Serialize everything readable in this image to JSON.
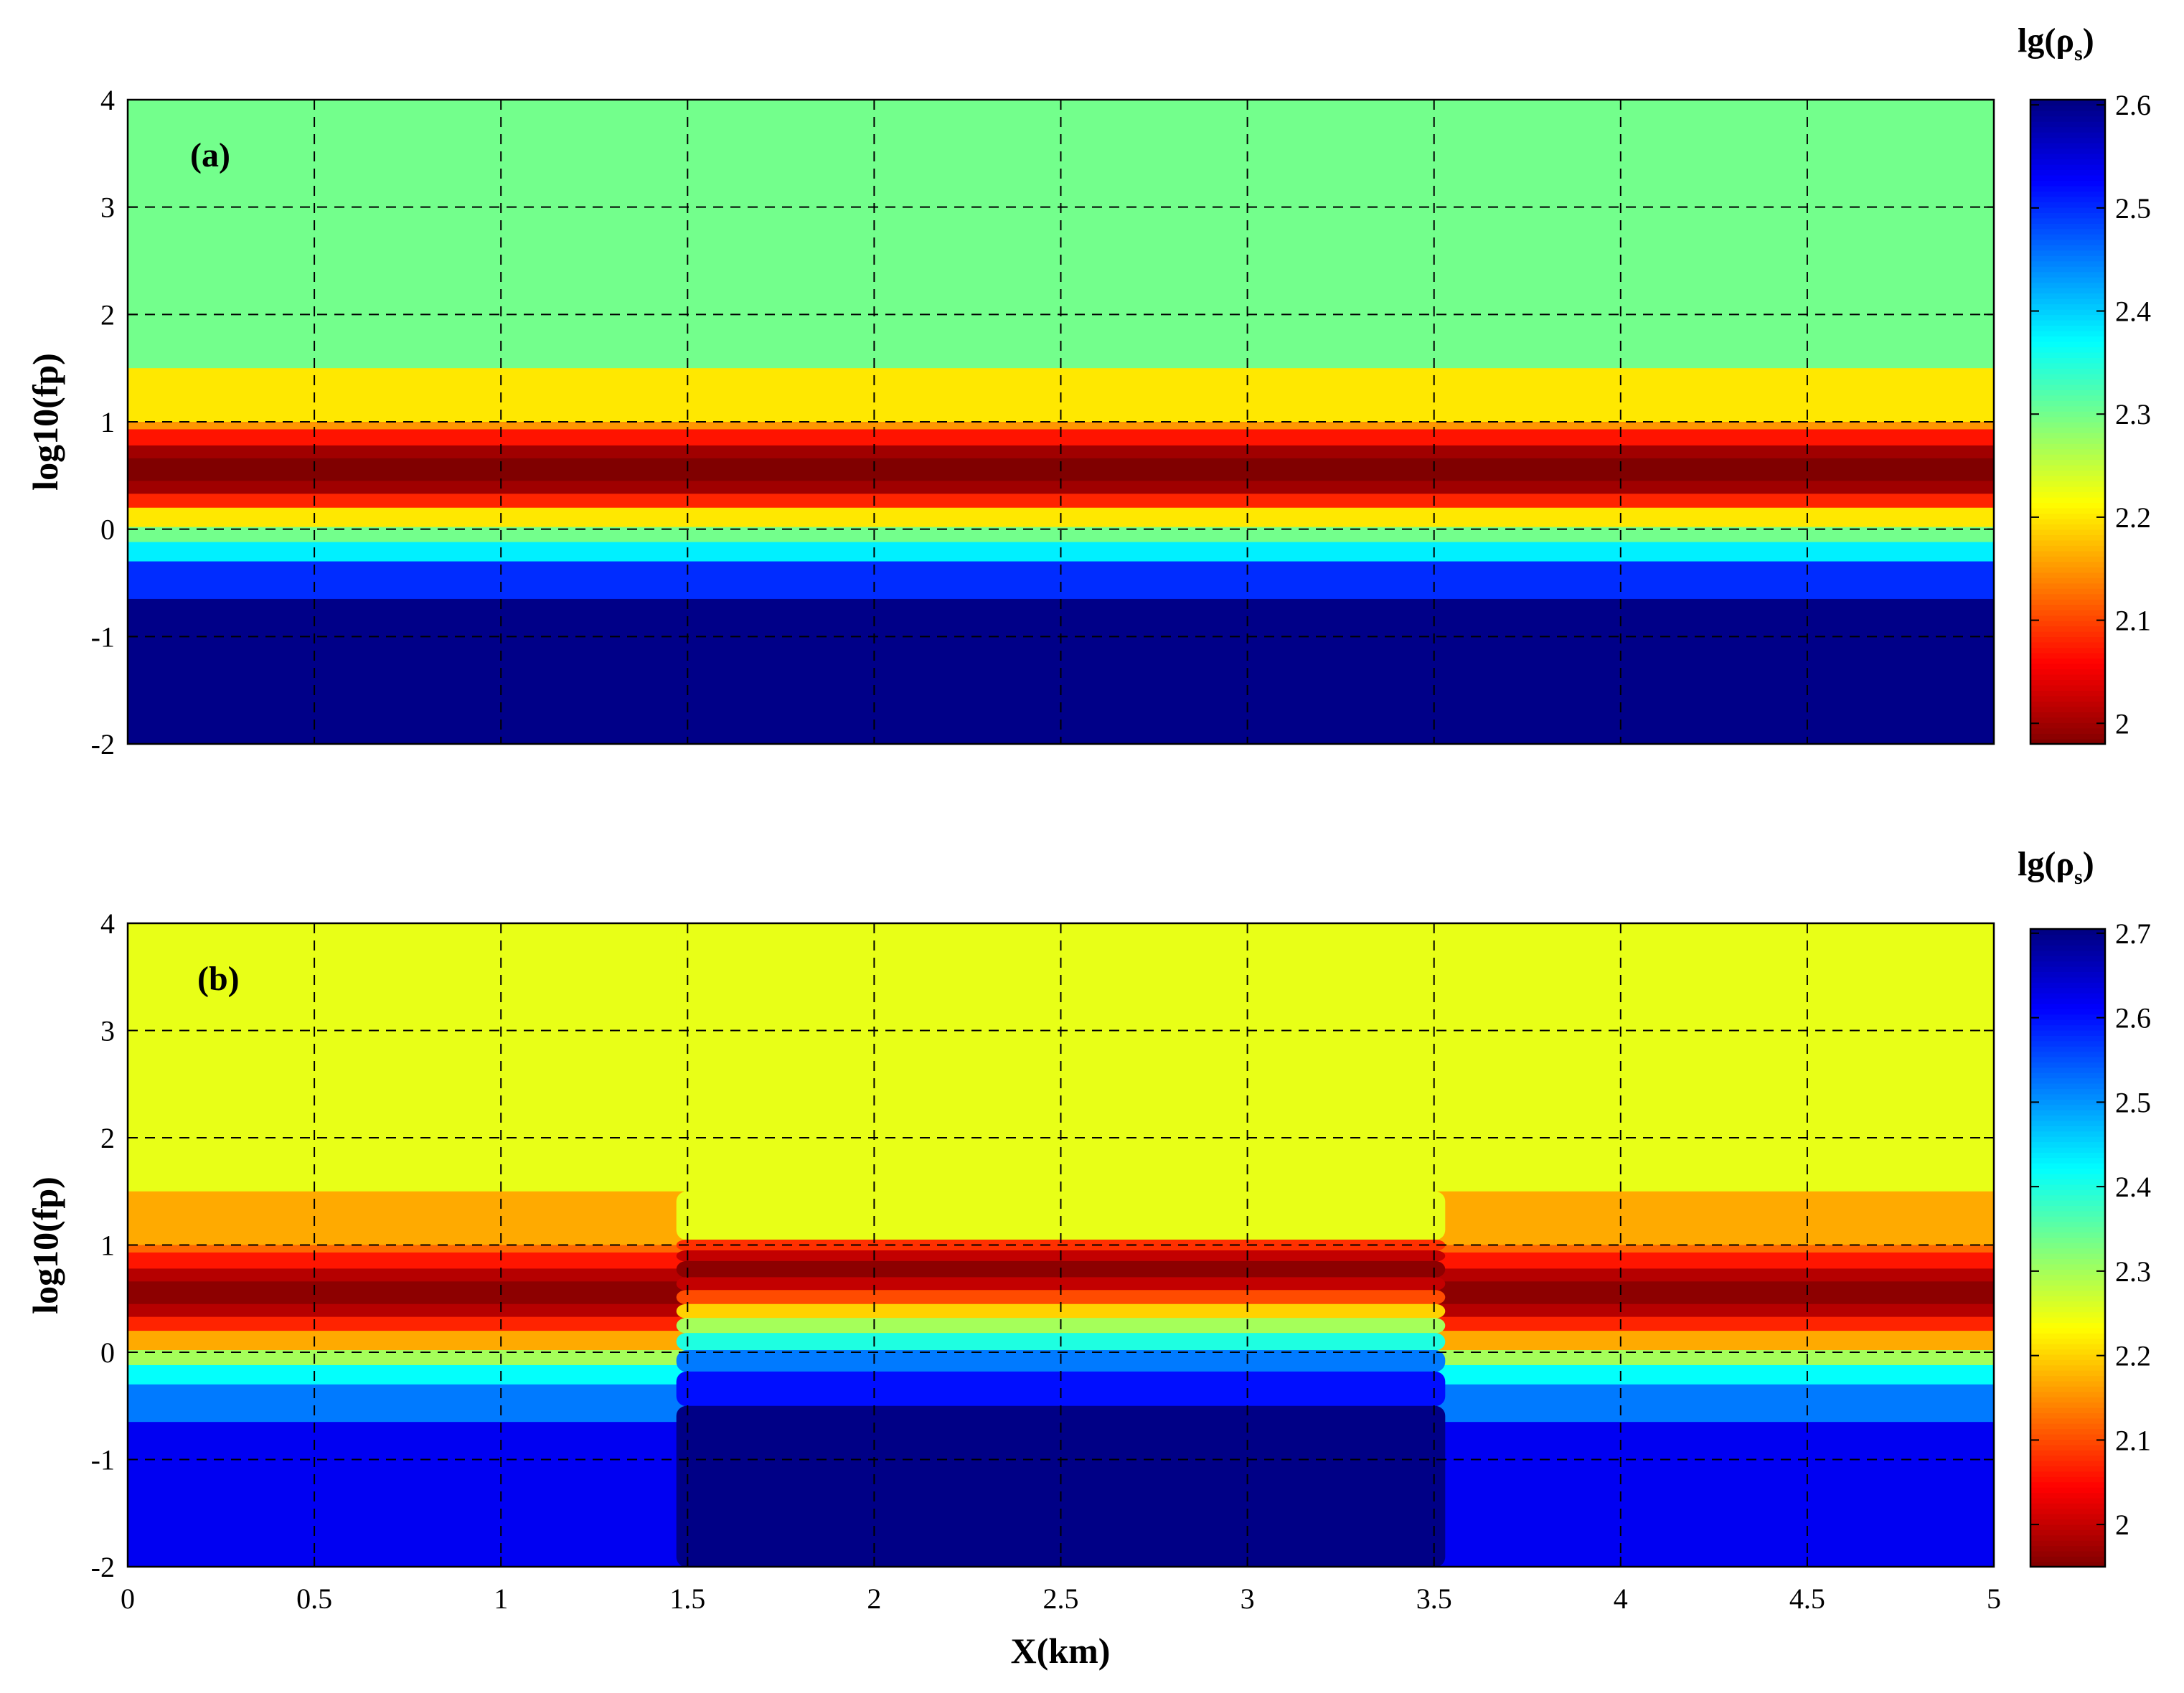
{
  "chart_data": [
    {
      "type": "heatmap",
      "panel_label": "(a)",
      "xlabel": "",
      "ylabel": "log10(fp)",
      "xlim": [
        0,
        5
      ],
      "ylim": [
        -2,
        4
      ],
      "xticks": [],
      "yticks": [
        "-2",
        "-1",
        "0",
        "1",
        "2",
        "3",
        "4"
      ],
      "grid": true,
      "colorbar": {
        "title_main": "lg(ρ",
        "title_sub": "s",
        "title_close": ")",
        "min": 1.98,
        "max": 2.605,
        "ticks": [
          "2",
          "2.1",
          "2.2",
          "2.3",
          "2.4",
          "2.5",
          "2.6"
        ]
      },
      "bands": [
        {
          "y_bottom": 1.5,
          "y_top": 4,
          "value": 2.3
        },
        {
          "y_bottom": 1.0,
          "y_top": 1.5,
          "value": 2.2
        },
        {
          "y_bottom": 0.93,
          "y_top": 1.0,
          "value": 2.15
        },
        {
          "y_bottom": 0.78,
          "y_top": 0.93,
          "value": 2.07
        },
        {
          "y_bottom": 0.66,
          "y_top": 0.78,
          "value": 2.0
        },
        {
          "y_bottom": 0.45,
          "y_top": 0.66,
          "value": 1.98
        },
        {
          "y_bottom": 0.33,
          "y_top": 0.45,
          "value": 2.0
        },
        {
          "y_bottom": 0.2,
          "y_top": 0.33,
          "value": 2.08
        },
        {
          "y_bottom": 0.02,
          "y_top": 0.2,
          "value": 2.2
        },
        {
          "y_bottom": -0.12,
          "y_top": 0.02,
          "value": 2.3
        },
        {
          "y_bottom": -0.3,
          "y_top": -0.12,
          "value": 2.38
        },
        {
          "y_bottom": -0.65,
          "y_top": -0.3,
          "value": 2.5
        },
        {
          "y_bottom": -2,
          "y_top": -0.65,
          "value": 2.6
        }
      ],
      "anomaly": null
    },
    {
      "type": "heatmap",
      "panel_label": "(b)",
      "xlabel": "X(km)",
      "ylabel": "log10(fp)",
      "xlim": [
        0,
        5
      ],
      "ylim": [
        -2,
        4
      ],
      "xticks": [
        "0",
        "0.5",
        "1",
        "1.5",
        "2",
        "2.5",
        "3",
        "3.5",
        "4",
        "4.5",
        "5"
      ],
      "yticks": [
        "-2",
        "-1",
        "0",
        "1",
        "2",
        "3",
        "4"
      ],
      "grid": true,
      "colorbar": {
        "title_main": "lg(ρ",
        "title_sub": "s",
        "title_close": ")",
        "min": 1.95,
        "max": 2.705,
        "ticks": [
          "2",
          "2.1",
          "2.2",
          "2.3",
          "2.4",
          "2.5",
          "2.6",
          "2.7"
        ]
      },
      "bands": [
        {
          "y_bottom": 1.5,
          "y_top": 4,
          "value": 2.25
        },
        {
          "y_bottom": 1.0,
          "y_top": 1.5,
          "value": 2.17
        },
        {
          "y_bottom": 0.93,
          "y_top": 1.0,
          "value": 2.12
        },
        {
          "y_bottom": 0.78,
          "y_top": 0.93,
          "value": 2.06
        },
        {
          "y_bottom": 0.66,
          "y_top": 0.78,
          "value": 1.99
        },
        {
          "y_bottom": 0.45,
          "y_top": 0.66,
          "value": 1.96
        },
        {
          "y_bottom": 0.33,
          "y_top": 0.45,
          "value": 1.99
        },
        {
          "y_bottom": 0.2,
          "y_top": 0.33,
          "value": 2.07
        },
        {
          "y_bottom": 0.02,
          "y_top": 0.2,
          "value": 2.17
        },
        {
          "y_bottom": -0.12,
          "y_top": 0.02,
          "value": 2.3
        },
        {
          "y_bottom": -0.3,
          "y_top": -0.12,
          "value": 2.42
        },
        {
          "y_bottom": -0.65,
          "y_top": -0.3,
          "value": 2.52
        },
        {
          "y_bottom": -2,
          "y_top": -0.65,
          "value": 2.62
        }
      ],
      "anomaly": {
        "x_start": 1.47,
        "x_end": 3.53,
        "bands": [
          {
            "y_bottom": 1.5,
            "y_top": 4,
            "value": 2.25
          },
          {
            "y_bottom": 1.05,
            "y_top": 1.5,
            "value": 2.25
          },
          {
            "y_bottom": 0.95,
            "y_top": 1.05,
            "value": 2.08
          },
          {
            "y_bottom": 0.85,
            "y_top": 0.95,
            "value": 2.0
          },
          {
            "y_bottom": 0.7,
            "y_top": 0.85,
            "value": 1.96
          },
          {
            "y_bottom": 0.58,
            "y_top": 0.7,
            "value": 2.0
          },
          {
            "y_bottom": 0.45,
            "y_top": 0.58,
            "value": 2.1
          },
          {
            "y_bottom": 0.32,
            "y_top": 0.45,
            "value": 2.2
          },
          {
            "y_bottom": 0.18,
            "y_top": 0.32,
            "value": 2.3
          },
          {
            "y_bottom": 0.02,
            "y_top": 0.18,
            "value": 2.4
          },
          {
            "y_bottom": -0.18,
            "y_top": 0.02,
            "value": 2.52
          },
          {
            "y_bottom": -0.5,
            "y_top": -0.18,
            "value": 2.6
          },
          {
            "y_bottom": -2,
            "y_top": -0.5,
            "value": 2.7
          }
        ]
      }
    }
  ]
}
